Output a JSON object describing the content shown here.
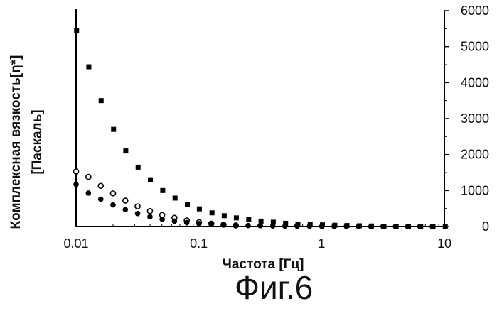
{
  "figure_caption": "Фиг.6",
  "chart_data": {
    "type": "scatter",
    "title": "",
    "xlabel": "Частота [Гц]",
    "ylabel_line1": "Комплексная вязкость[η*]",
    "ylabel_line2": "[Паскаль]",
    "x_scale": "log",
    "xlim": [
      0.01,
      10
    ],
    "ylim": [
      0,
      6000
    ],
    "x_ticks": [
      0.01,
      0.1,
      1,
      10
    ],
    "x_tick_labels": [
      "0.01",
      "0.1",
      "1",
      "10"
    ],
    "y_ticks": [
      0,
      1000,
      2000,
      3000,
      4000,
      5000,
      6000
    ],
    "y_tick_labels": [
      "0",
      "1000",
      "2000",
      "3000",
      "4000",
      "5000",
      "6000"
    ],
    "y_axis_side": "right",
    "grid": false,
    "legend": "none",
    "series": [
      {
        "marker": "filled-square",
        "x": [
          0.0101,
          0.0127,
          0.016,
          0.0202,
          0.0254,
          0.032,
          0.0403,
          0.0508,
          0.064,
          0.0806,
          0.101,
          0.128,
          0.161,
          0.202,
          0.255,
          0.321,
          0.404,
          0.509,
          0.641,
          0.807,
          1.016,
          1.28,
          1.61,
          2.03,
          2.55,
          3.22,
          4.05,
          5.1,
          6.42,
          8.08,
          10.17
        ],
        "y": [
          5450,
          4440,
          3500,
          2700,
          2100,
          1650,
          1300,
          1000,
          790,
          620,
          490,
          380,
          300,
          240,
          190,
          150,
          120,
          90,
          70,
          55,
          45,
          35,
          28,
          20,
          15,
          10,
          8,
          5,
          3,
          2,
          1
        ]
      },
      {
        "marker": "open-circle",
        "x": [
          0.01,
          0.0126,
          0.0159,
          0.02,
          0.0252,
          0.0317,
          0.04,
          0.0503,
          0.0633,
          0.0797,
          0.1003,
          0.1263,
          0.159,
          0.2
        ],
        "y": [
          1530,
          1380,
          1130,
          920,
          720,
          560,
          430,
          320,
          240,
          170,
          120,
          80,
          50,
          30
        ]
      },
      {
        "marker": "filled-circle",
        "x": [
          0.01,
          0.0126,
          0.0159,
          0.02,
          0.0252,
          0.0317,
          0.04,
          0.0503,
          0.0633,
          0.0797,
          0.1003,
          0.1263,
          0.159,
          0.2,
          0.252,
          0.317,
          0.4,
          0.503,
          0.633,
          0.797,
          1.003,
          1.263,
          1.59,
          2.0,
          2.52,
          3.17,
          4.0,
          5.03,
          6.33,
          7.97
        ],
        "y": [
          1170,
          930,
          760,
          600,
          470,
          360,
          270,
          200,
          150,
          110,
          80,
          60,
          45,
          35,
          27,
          22,
          17,
          13,
          10,
          8,
          6,
          5,
          4,
          3,
          2,
          2,
          1,
          1,
          1,
          1
        ]
      }
    ]
  }
}
